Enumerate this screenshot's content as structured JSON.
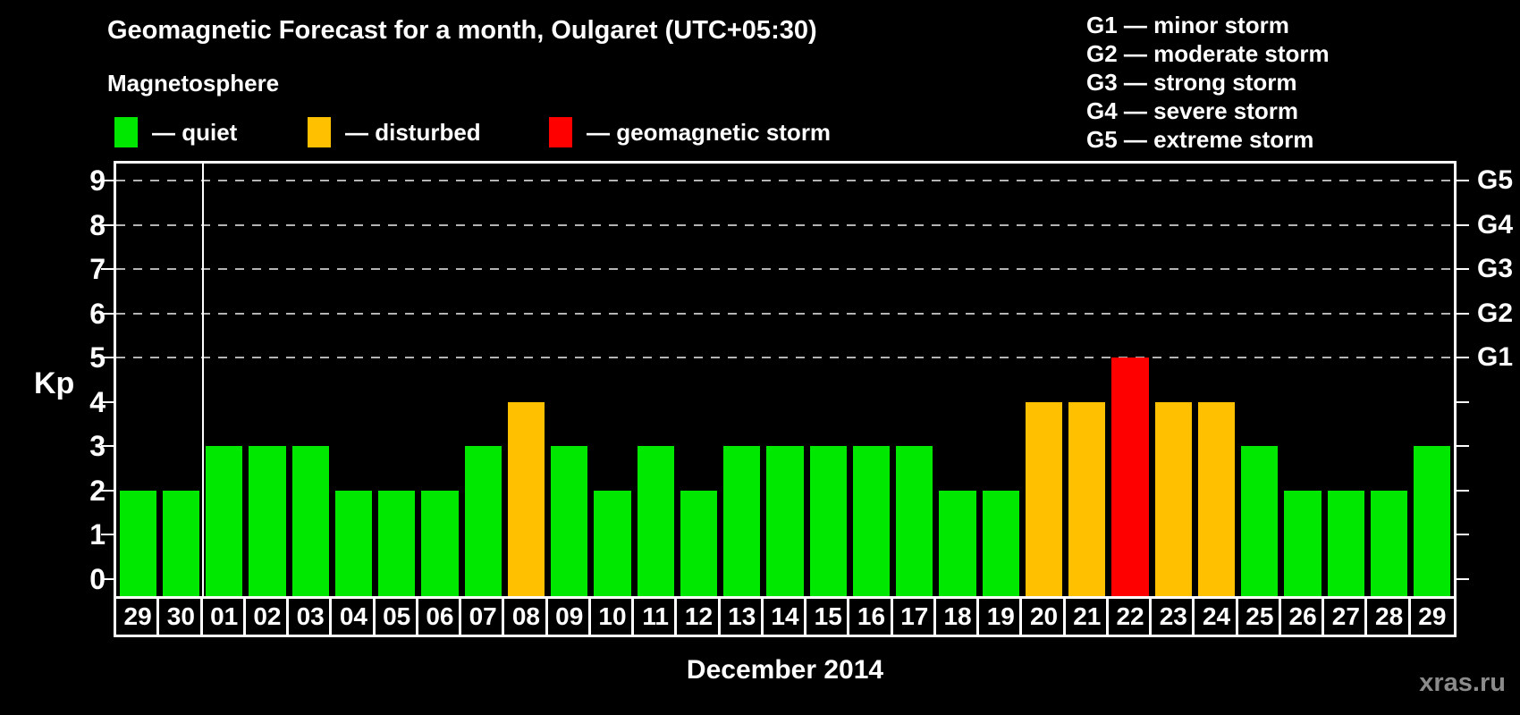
{
  "title": "Geomagnetic Forecast for a month, Oulgaret (UTC+05:30)",
  "subtitle": "Magnetosphere",
  "legend": [
    {
      "label": "— quiet",
      "color": "#00e800"
    },
    {
      "label": "— disturbed",
      "color": "#ffc000"
    },
    {
      "label": "— geomagnetic storm",
      "color": "#ff0000"
    }
  ],
  "g_legend": [
    "G1 — minor storm",
    "G2 — moderate storm",
    "G3 — strong storm",
    "G4 — severe storm",
    "G5 — extreme storm"
  ],
  "axis": {
    "kp_label": "Kp",
    "y_ticks": [
      0,
      1,
      2,
      3,
      4,
      5,
      6,
      7,
      8,
      9
    ]
  },
  "month_label": "December 2014",
  "watermark": "xras.ru",
  "chart_data": {
    "type": "bar",
    "title": "Geomagnetic Forecast for a month, Oulgaret (UTC+05:30)",
    "xlabel": "December 2014",
    "ylabel": "Kp",
    "ylim": [
      0,
      9
    ],
    "grid": "dashed horizontal at Kp 5-9 only",
    "legend_position": "top-left",
    "categories": [
      "29",
      "30",
      "01",
      "02",
      "03",
      "04",
      "05",
      "06",
      "07",
      "08",
      "09",
      "10",
      "11",
      "12",
      "13",
      "14",
      "15",
      "16",
      "17",
      "18",
      "19",
      "20",
      "21",
      "22",
      "23",
      "24",
      "25",
      "26",
      "27",
      "28",
      "29"
    ],
    "values": [
      2,
      2,
      3,
      3,
      3,
      2,
      2,
      2,
      3,
      4,
      3,
      2,
      3,
      2,
      3,
      3,
      3,
      3,
      3,
      2,
      2,
      4,
      4,
      5,
      4,
      4,
      3,
      2,
      2,
      2,
      3
    ],
    "status": [
      "quiet",
      "quiet",
      "quiet",
      "quiet",
      "quiet",
      "quiet",
      "quiet",
      "quiet",
      "quiet",
      "disturbed",
      "quiet",
      "quiet",
      "quiet",
      "quiet",
      "quiet",
      "quiet",
      "quiet",
      "quiet",
      "quiet",
      "quiet",
      "quiet",
      "disturbed",
      "disturbed",
      "storm",
      "disturbed",
      "disturbed",
      "quiet",
      "quiet",
      "quiet",
      "quiet",
      "quiet"
    ],
    "colors": {
      "quiet": "#00e800",
      "disturbed": "#ffc000",
      "storm": "#ff0000"
    },
    "gridlines_at": [
      5,
      6,
      7,
      8,
      9
    ],
    "right_axis_labels": {
      "5": "G1",
      "6": "G2",
      "7": "G3",
      "8": "G4",
      "9": "G5"
    },
    "separator_after_index": 1
  }
}
